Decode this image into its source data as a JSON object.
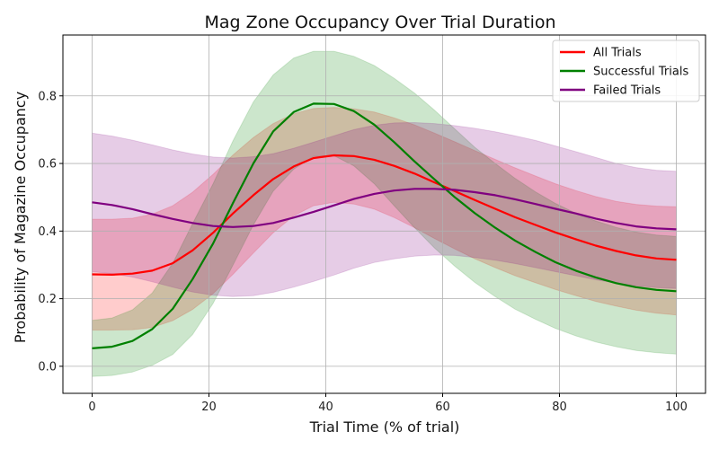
{
  "chart_data": {
    "type": "line",
    "title": "Mag Zone Occupancy Over Trial Duration",
    "xlabel": "Trial Time (% of trial)",
    "ylabel": "Probability of Magazine Occupancy",
    "xlim": [
      -5,
      105
    ],
    "ylim": [
      -0.08,
      0.98
    ],
    "x_ticks": [
      0,
      20,
      40,
      60,
      80,
      100
    ],
    "y_ticks": [
      0.0,
      0.2,
      0.4,
      0.6,
      0.8
    ],
    "grid": true,
    "legend_position": "top-right",
    "x": [
      0,
      3.4,
      6.9,
      10.3,
      13.8,
      17.2,
      20.7,
      24.1,
      27.6,
      31.0,
      34.5,
      37.9,
      41.4,
      44.8,
      48.3,
      51.7,
      55.2,
      58.6,
      62.1,
      65.5,
      69.0,
      72.4,
      75.9,
      79.3,
      82.8,
      86.2,
      89.7,
      93.1,
      96.6,
      100
    ],
    "series": [
      {
        "name": "All Trials",
        "color": "#ff0000",
        "band_color": "#ff0000",
        "band_opacity": 0.2,
        "values": [
          0.272,
          0.271,
          0.274,
          0.283,
          0.305,
          0.343,
          0.395,
          0.452,
          0.506,
          0.554,
          0.591,
          0.616,
          0.624,
          0.622,
          0.611,
          0.593,
          0.57,
          0.544,
          0.518,
          0.492,
          0.466,
          0.441,
          0.418,
          0.396,
          0.376,
          0.357,
          0.341,
          0.328,
          0.319,
          0.315
        ],
        "lower": [
          0.107,
          0.107,
          0.108,
          0.115,
          0.135,
          0.168,
          0.215,
          0.272,
          0.335,
          0.395,
          0.445,
          0.475,
          0.485,
          0.48,
          0.465,
          0.44,
          0.41,
          0.378,
          0.347,
          0.318,
          0.292,
          0.268,
          0.247,
          0.227,
          0.209,
          0.192,
          0.178,
          0.166,
          0.157,
          0.152
        ],
        "upper": [
          0.435,
          0.435,
          0.438,
          0.45,
          0.475,
          0.515,
          0.568,
          0.625,
          0.677,
          0.718,
          0.747,
          0.763,
          0.766,
          0.762,
          0.752,
          0.735,
          0.714,
          0.69,
          0.664,
          0.638,
          0.612,
          0.587,
          0.563,
          0.54,
          0.52,
          0.502,
          0.488,
          0.479,
          0.474,
          0.472
        ]
      },
      {
        "name": "Successful Trials",
        "color": "#008000",
        "band_color": "#008000",
        "band_opacity": 0.2,
        "values": [
          0.053,
          0.058,
          0.075,
          0.11,
          0.17,
          0.258,
          0.363,
          0.483,
          0.6,
          0.695,
          0.752,
          0.777,
          0.776,
          0.755,
          0.715,
          0.663,
          0.606,
          0.553,
          0.5,
          0.453,
          0.41,
          0.372,
          0.338,
          0.308,
          0.283,
          0.263,
          0.246,
          0.234,
          0.226,
          0.222
        ],
        "lower": [
          -0.03,
          -0.027,
          -0.017,
          0.003,
          0.035,
          0.094,
          0.186,
          0.299,
          0.418,
          0.518,
          0.583,
          0.621,
          0.623,
          0.593,
          0.54,
          0.475,
          0.41,
          0.35,
          0.296,
          0.248,
          0.206,
          0.169,
          0.139,
          0.112,
          0.09,
          0.072,
          0.058,
          0.047,
          0.04,
          0.036
        ],
        "upper": [
          0.136,
          0.143,
          0.167,
          0.217,
          0.305,
          0.422,
          0.54,
          0.667,
          0.782,
          0.862,
          0.912,
          0.932,
          0.932,
          0.917,
          0.89,
          0.852,
          0.808,
          0.758,
          0.702,
          0.648,
          0.6,
          0.556,
          0.516,
          0.482,
          0.453,
          0.43,
          0.411,
          0.397,
          0.388,
          0.384
        ]
      },
      {
        "name": "Failed Trials",
        "color": "#800080",
        "band_color": "#800080",
        "band_opacity": 0.2,
        "values": [
          0.485,
          0.477,
          0.465,
          0.45,
          0.436,
          0.424,
          0.415,
          0.412,
          0.415,
          0.424,
          0.44,
          0.457,
          0.476,
          0.495,
          0.51,
          0.52,
          0.525,
          0.525,
          0.522,
          0.515,
          0.506,
          0.494,
          0.48,
          0.466,
          0.452,
          0.437,
          0.424,
          0.414,
          0.408,
          0.405
        ],
        "lower": [
          0.28,
          0.274,
          0.264,
          0.25,
          0.234,
          0.22,
          0.21,
          0.206,
          0.209,
          0.219,
          0.234,
          0.251,
          0.27,
          0.29,
          0.307,
          0.318,
          0.326,
          0.329,
          0.328,
          0.322,
          0.314,
          0.304,
          0.292,
          0.28,
          0.268,
          0.256,
          0.246,
          0.238,
          0.233,
          0.23
        ],
        "upper": [
          0.69,
          0.681,
          0.669,
          0.655,
          0.64,
          0.628,
          0.619,
          0.616,
          0.62,
          0.629,
          0.645,
          0.663,
          0.682,
          0.7,
          0.713,
          0.72,
          0.721,
          0.718,
          0.712,
          0.704,
          0.694,
          0.682,
          0.668,
          0.652,
          0.635,
          0.618,
          0.6,
          0.588,
          0.58,
          0.577
        ]
      }
    ]
  }
}
